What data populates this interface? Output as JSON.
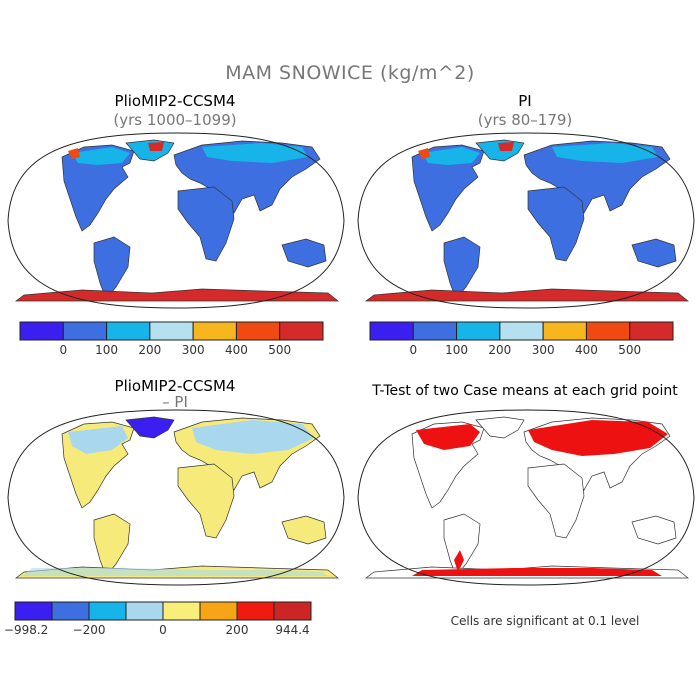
{
  "figure": {
    "title": "MAM SNOWICE (kg/m^2)"
  },
  "panels": [
    {
      "title": "PlioMIP2-CCSM4",
      "subtitle": "(yrs 1000–1099)"
    },
    {
      "title": "PI",
      "subtitle": "(yrs 80–179)"
    },
    {
      "title": "PlioMIP2-CCSM4",
      "subtitle": "– PI"
    },
    {
      "title": "T-Test of two Case means at each grid point",
      "subtitle": ""
    }
  ],
  "colorbars": {
    "absolute": {
      "colors": [
        "#3b1ff0",
        "#3d6fe0",
        "#17b4ea",
        "#b4e0f0",
        "#f7b51e",
        "#f04a12",
        "#d42a2a"
      ],
      "labels": [
        "0",
        "100",
        "200",
        "300",
        "400",
        "500"
      ]
    },
    "difference": {
      "colors": [
        "#3b1ff0",
        "#3d6fe0",
        "#17b4ea",
        "#a9d8ee",
        "#faee7a",
        "#f7a516",
        "#f01b10",
        "#cc2525"
      ],
      "labels": [
        "−998.2",
        "−200",
        "0",
        "200",
        "944.4"
      ]
    }
  },
  "significance_note": "Cells are significant at 0.1 level",
  "colors": {
    "land_low_snow": "#3d6fe0",
    "antarctic_ice": "#d42a2a",
    "diff_land": "#f5ea7a",
    "diff_snow_loss": "#a9d8ee",
    "significant": "#ee1111"
  }
}
